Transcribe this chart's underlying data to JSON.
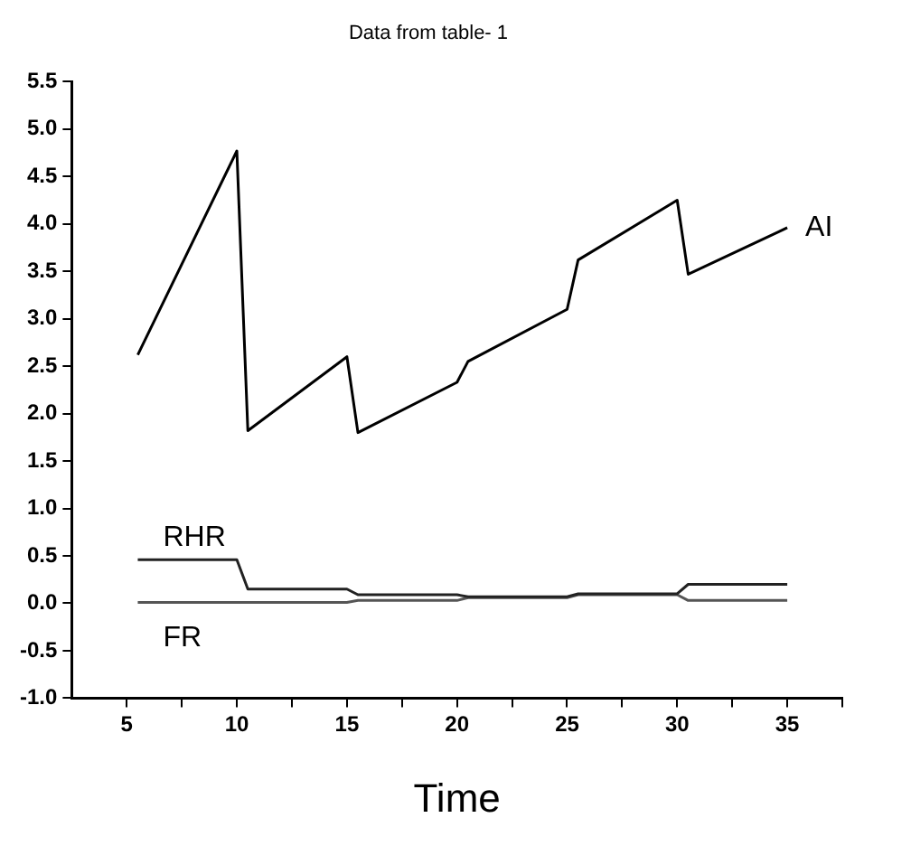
{
  "chart_data": {
    "type": "line",
    "title": "Data from table- 1",
    "xlabel": "Time",
    "x": [
      5.5,
      10,
      10.5,
      15,
      15.5,
      20,
      20.5,
      25,
      25.5,
      30,
      30.5,
      35
    ],
    "series": [
      {
        "name": "AI",
        "color": "#000000",
        "values": [
          2.62,
          4.77,
          1.82,
          2.6,
          1.8,
          2.33,
          2.55,
          3.1,
          3.62,
          4.25,
          3.47,
          3.96
        ]
      },
      {
        "name": "RHR",
        "color": "#222222",
        "values": [
          0.46,
          0.46,
          0.15,
          0.15,
          0.09,
          0.09,
          0.07,
          0.07,
          0.1,
          0.1,
          0.2,
          0.2
        ]
      },
      {
        "name": "FR",
        "color": "#555555",
        "values": [
          0.01,
          0.01,
          0.01,
          0.01,
          0.03,
          0.03,
          0.06,
          0.06,
          0.09,
          0.09,
          0.03,
          0.03
        ]
      }
    ],
    "xlim": [
      2.5,
      37.5
    ],
    "xticks": [
      5,
      {
        "value": 7.5,
        "label": null
      },
      10,
      {
        "value": 12.5,
        "label": null
      },
      15,
      {
        "value": 17.5,
        "label": null
      },
      20,
      {
        "value": 22.5,
        "label": null
      },
      25,
      {
        "value": 27.5,
        "label": null
      },
      30,
      {
        "value": 32.5,
        "label": null
      },
      35,
      {
        "value": 37.5,
        "label": null
      }
    ],
    "ylim": [
      -1,
      5.5
    ],
    "yticks": [
      {
        "value": -1,
        "label": "-1.0"
      },
      -0.5,
      {
        "value": 0,
        "label": "0.0"
      },
      0.5,
      {
        "value": 1,
        "label": "1.0"
      },
      1.5,
      {
        "value": 2,
        "label": "2.0"
      },
      2.5,
      {
        "value": 3,
        "label": "3.0"
      },
      3.5,
      {
        "value": 4,
        "label": "4.0"
      },
      4.5,
      {
        "value": 5,
        "label": "5.0"
      },
      5.5
    ],
    "grid": false,
    "legend": false,
    "marker": "none",
    "line_style": "solid"
  }
}
